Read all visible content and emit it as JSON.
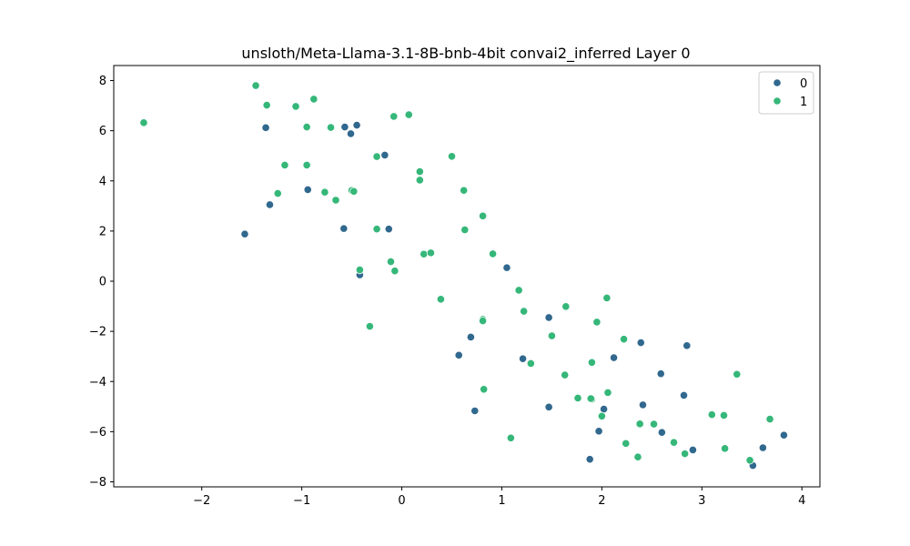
{
  "chart_data": {
    "type": "scatter",
    "title": "unsloth/Meta-Llama-3.1-8B-bnb-4bit convai2_inferred Layer 0",
    "xlabel": "",
    "ylabel": "",
    "xlim": [
      -2.88,
      4.18
    ],
    "ylim": [
      -8.2,
      8.6
    ],
    "xticks": [
      -2,
      -1,
      0,
      1,
      2,
      3,
      4
    ],
    "yticks": [
      -8,
      -6,
      -4,
      -2,
      0,
      2,
      4,
      6,
      8
    ],
    "xtick_labels": [
      "−2",
      "−1",
      "0",
      "1",
      "2",
      "3",
      "4"
    ],
    "ytick_labels": [
      "−8",
      "−6",
      "−4",
      "−2",
      "0",
      "2",
      "4",
      "6",
      "8"
    ],
    "grid": false,
    "legend": {
      "placement": "top-right",
      "entries": [
        {
          "label": "0",
          "color": "#31688e"
        },
        {
          "label": "1",
          "color": "#35b779"
        }
      ]
    },
    "series": [
      {
        "name": "0",
        "color": "#31688e",
        "points": [
          [
            -1.36,
            6.12
          ],
          [
            -1.32,
            3.05
          ],
          [
            -1.57,
            1.88
          ],
          [
            -0.94,
            3.65
          ],
          [
            -0.57,
            6.15
          ],
          [
            -0.51,
            5.88
          ],
          [
            -0.45,
            6.22
          ],
          [
            -0.17,
            5.03
          ],
          [
            -0.58,
            2.1
          ],
          [
            -0.13,
            2.08
          ],
          [
            -0.42,
            0.25
          ],
          [
            1.05,
            0.54
          ],
          [
            0.69,
            -2.23
          ],
          [
            0.57,
            -2.95
          ],
          [
            0.73,
            -5.17
          ],
          [
            1.47,
            -1.45
          ],
          [
            1.21,
            -3.09
          ],
          [
            1.47,
            -5.02
          ],
          [
            1.88,
            -7.1
          ],
          [
            1.97,
            -5.98
          ],
          [
            2.02,
            -5.1
          ],
          [
            2.12,
            -3.05
          ],
          [
            2.39,
            -2.45
          ],
          [
            2.41,
            -4.93
          ],
          [
            2.59,
            -3.69
          ],
          [
            2.6,
            -6.03
          ],
          [
            2.82,
            -4.55
          ],
          [
            2.85,
            -2.57
          ],
          [
            2.91,
            -6.73
          ],
          [
            3.51,
            -7.35
          ],
          [
            3.61,
            -6.64
          ],
          [
            3.82,
            -6.14
          ]
        ]
      },
      {
        "name": "1",
        "color": "#35b779",
        "points": [
          [
            -2.58,
            6.32
          ],
          [
            -1.46,
            7.8
          ],
          [
            -1.35,
            7.02
          ],
          [
            -1.06,
            6.97
          ],
          [
            -0.88,
            7.26
          ],
          [
            -0.95,
            6.15
          ],
          [
            -0.71,
            6.13
          ],
          [
            -0.08,
            6.57
          ],
          [
            0.07,
            6.64
          ],
          [
            -1.17,
            4.63
          ],
          [
            -0.95,
            4.63
          ],
          [
            -1.24,
            3.5
          ],
          [
            -0.77,
            3.55
          ],
          [
            -0.66,
            3.23
          ],
          [
            -0.5,
            3.62
          ],
          [
            -0.48,
            3.58
          ],
          [
            -0.25,
            4.97
          ],
          [
            0.18,
            4.37
          ],
          [
            0.18,
            4.03
          ],
          [
            0.5,
            4.98
          ],
          [
            0.62,
            3.62
          ],
          [
            0.81,
            2.6
          ],
          [
            -0.25,
            2.08
          ],
          [
            0.63,
            2.05
          ],
          [
            0.22,
            1.08
          ],
          [
            0.29,
            1.13
          ],
          [
            0.91,
            1.09
          ],
          [
            -0.11,
            0.78
          ],
          [
            -0.42,
            0.45
          ],
          [
            -0.07,
            0.41
          ],
          [
            0.39,
            -0.72
          ],
          [
            -0.32,
            -1.8
          ],
          [
            0.81,
            -1.52
          ],
          [
            0.81,
            -1.58
          ],
          [
            1.17,
            -0.36
          ],
          [
            1.22,
            -1.2
          ],
          [
            1.64,
            -1.01
          ],
          [
            1.95,
            -1.63
          ],
          [
            2.05,
            -0.67
          ],
          [
            1.29,
            -3.28
          ],
          [
            1.5,
            -2.18
          ],
          [
            1.63,
            -3.74
          ],
          [
            1.76,
            -4.66
          ],
          [
            1.9,
            -4.71
          ],
          [
            1.89,
            -4.68
          ],
          [
            1.9,
            -3.24
          ],
          [
            2.0,
            -5.38
          ],
          [
            2.06,
            -4.44
          ],
          [
            2.22,
            -2.31
          ],
          [
            2.24,
            -6.47
          ],
          [
            2.36,
            -7.01
          ],
          [
            2.38,
            -5.69
          ],
          [
            2.52,
            -5.7
          ],
          [
            2.72,
            -6.43
          ],
          [
            2.83,
            -6.88
          ],
          [
            3.1,
            -5.32
          ],
          [
            3.22,
            -5.35
          ],
          [
            3.23,
            -6.67
          ],
          [
            3.35,
            -3.71
          ],
          [
            3.48,
            -7.14
          ],
          [
            3.68,
            -5.5
          ],
          [
            1.09,
            -6.25
          ],
          [
            0.82,
            -4.31
          ]
        ]
      }
    ]
  }
}
